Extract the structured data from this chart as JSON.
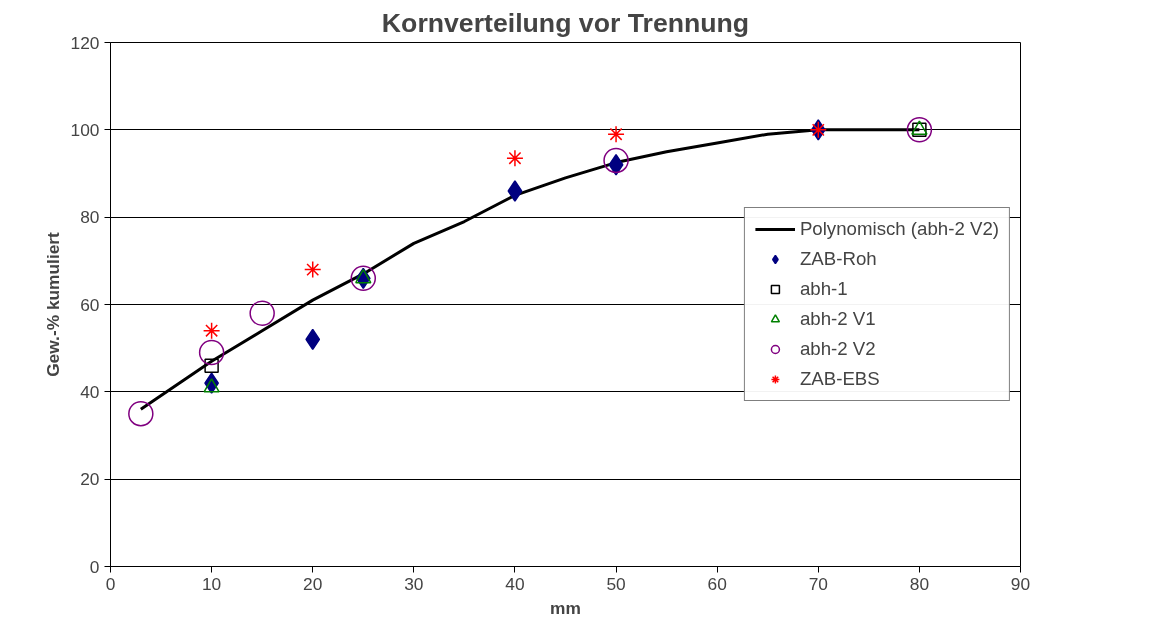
{
  "chart_data": {
    "type": "scatter",
    "title": "Kornverteilung vor Trennung",
    "xlabel": "mm",
    "ylabel": "Gew.-% kumuliert",
    "xlim": [
      0,
      90
    ],
    "xticks": [
      0,
      10,
      20,
      30,
      40,
      50,
      60,
      70,
      80,
      90
    ],
    "ylim": [
      0,
      120
    ],
    "yticks": [
      0,
      20,
      40,
      60,
      80,
      100,
      120
    ],
    "grid": "y",
    "legend": "right",
    "series": [
      {
        "name": "ZAB-Roh",
        "color": "#000080",
        "marker": "diamond",
        "x": [
          10,
          20,
          25,
          40,
          50,
          70
        ],
        "values": [
          42,
          52,
          66,
          86,
          92,
          100
        ]
      },
      {
        "name": "abh-1",
        "color": "#000000",
        "marker": "square",
        "x": [
          10,
          80
        ],
        "values": [
          46,
          100
        ]
      },
      {
        "name": "abh-2 V1",
        "color": "#008000",
        "marker": "triangle",
        "x": [
          10,
          25,
          80
        ],
        "values": [
          41,
          66,
          100
        ]
      },
      {
        "name": "abh-2 V2",
        "color": "#800080",
        "marker": "circle",
        "x": [
          3,
          10,
          15,
          25,
          50,
          80
        ],
        "values": [
          35,
          49,
          58,
          66,
          93,
          100
        ]
      },
      {
        "name": "ZAB-EBS",
        "color": "#ff0000",
        "marker": "cross",
        "x": [
          10,
          20,
          40,
          50,
          70
        ],
        "values": [
          54,
          68,
          93.5,
          99,
          100
        ]
      },
      {
        "name": "Polynomisch (abh-2 V2)",
        "type": "line",
        "color": "#000000",
        "marker": "none",
        "line_style": "solid",
        "x": [
          3,
          10,
          15,
          20,
          25,
          30,
          35,
          40,
          45,
          50,
          55,
          60,
          65,
          70,
          75,
          80
        ],
        "values": [
          36,
          47,
          54,
          61,
          67,
          74,
          79,
          85,
          89,
          92.5,
          95,
          97,
          99,
          100,
          100,
          100
        ]
      }
    ]
  }
}
